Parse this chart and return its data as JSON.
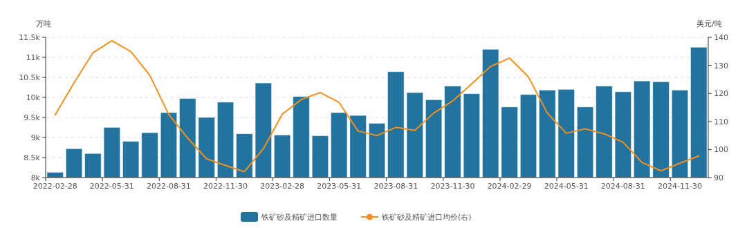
{
  "chart_data": {
    "type": "bar",
    "ylabel": "万吨",
    "y2label": "美元/吨",
    "categories": [
      "2022-02-28",
      null,
      null,
      "2022-05-31",
      null,
      null,
      "2022-08-31",
      null,
      null,
      "2022-11-30",
      null,
      null,
      "2023-02-28",
      null,
      null,
      "2023-05-31",
      null,
      null,
      "2023-08-31",
      null,
      null,
      "2023-11-30",
      null,
      null,
      "2024-02-29",
      null,
      null,
      "2024-05-31",
      null,
      null,
      "2024-08-31",
      null,
      null,
      "2024-11-30",
      null
    ],
    "series": [
      {
        "name": "铁矿砂及精矿进口数量",
        "color": "#22739e",
        "values": [
          8130,
          8720,
          8600,
          9250,
          8900,
          9120,
          9620,
          9970,
          9500,
          9880,
          9090,
          10360,
          9060,
          10020,
          9040,
          9620,
          9550,
          9350,
          10640,
          10120,
          9940,
          10280,
          10090,
          11200,
          9760,
          10070,
          10180,
          10200,
          9760,
          10280,
          10140,
          10410,
          10390,
          10180,
          11250
        ]
      },
      {
        "name": "铁矿砂及精矿进口均价(右)",
        "type": "line",
        "axis": "y2",
        "color": "#f5901e",
        "values": [
          112.3,
          123.8,
          134.5,
          138.8,
          134.9,
          126.5,
          112.5,
          104.1,
          96.7,
          94.3,
          92.1,
          100.3,
          112.6,
          117.8,
          120.3,
          116.8,
          106.6,
          105,
          107.9,
          106.8,
          113,
          117.3,
          123.4,
          129.6,
          132.6,
          125.9,
          113,
          105.8,
          107.4,
          105.6,
          102.6,
          95.4,
          92.4,
          95.1,
          97.7
        ]
      }
    ],
    "ylim": [
      8000,
      11500
    ],
    "yticks": [
      {
        "value": 8000,
        "label": "8k"
      },
      {
        "value": 8500,
        "label": "8.5k"
      },
      {
        "value": 9000,
        "label": "9k"
      },
      {
        "value": 9500,
        "label": "9.5k"
      },
      {
        "value": 10000,
        "label": "10k"
      },
      {
        "value": 10500,
        "label": "10.5k"
      },
      {
        "value": 11000,
        "label": "11k"
      },
      {
        "value": 11500,
        "label": "11.5k"
      }
    ],
    "y2lim": [
      90,
      140
    ],
    "y2ticks": [
      90,
      100,
      110,
      120,
      130,
      140
    ],
    "grid": "y",
    "legend": "bottom"
  }
}
